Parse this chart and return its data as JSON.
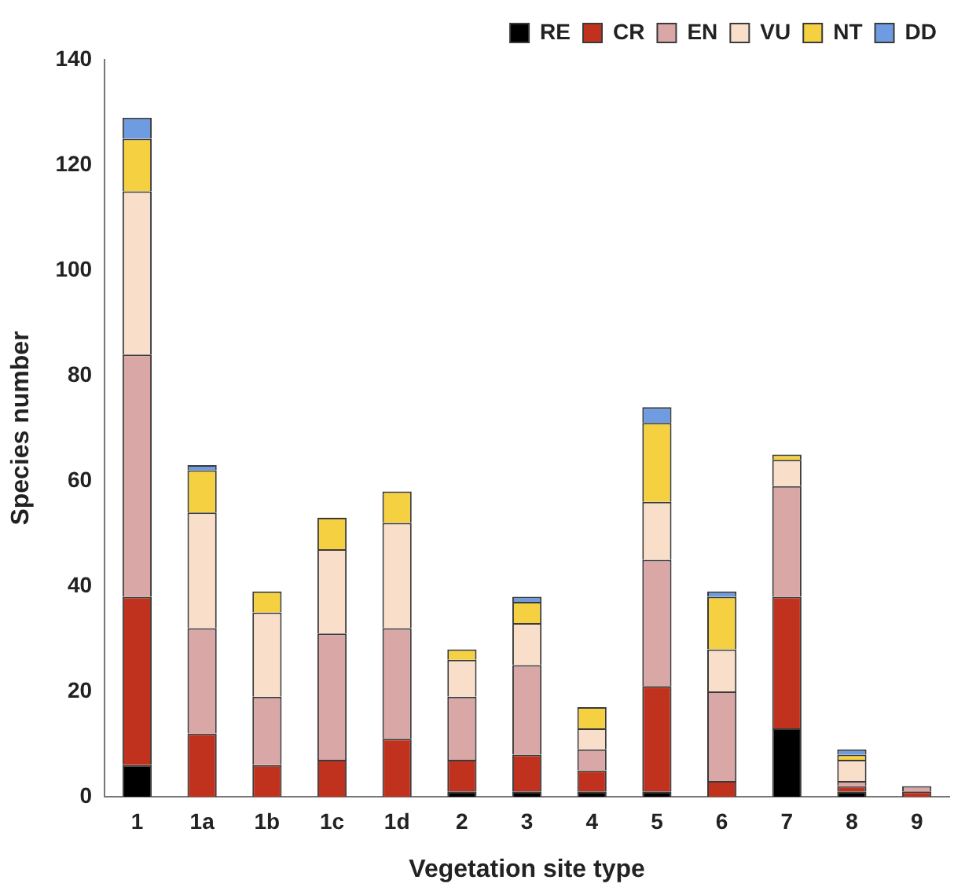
{
  "chart_data": {
    "type": "bar",
    "stacked": true,
    "xlabel": "Vegetation site type",
    "ylabel": "Species number",
    "categories": [
      "1",
      "1a",
      "1b",
      "1c",
      "1d",
      "2",
      "3",
      "4",
      "5",
      "6",
      "7",
      "8",
      "9"
    ],
    "ylim": [
      0,
      140
    ],
    "yticks": [
      0,
      20,
      40,
      60,
      80,
      100,
      120,
      140
    ],
    "grid": false,
    "legend": "top right",
    "series": [
      {
        "name": "RE",
        "color": "#000000",
        "values": [
          6,
          0,
          0,
          0,
          0,
          1,
          1,
          1,
          1,
          0,
          13,
          1,
          0
        ]
      },
      {
        "name": "CR",
        "color": "#c0311e",
        "values": [
          32,
          12,
          6,
          7,
          11,
          6,
          7,
          4,
          20,
          3,
          25,
          1,
          1
        ]
      },
      {
        "name": "EN",
        "color": "#d9a8a6",
        "values": [
          46,
          20,
          13,
          24,
          21,
          12,
          17,
          4,
          24,
          17,
          21,
          1,
          1
        ]
      },
      {
        "name": "VU",
        "color": "#f9dfc9",
        "values": [
          31,
          22,
          16,
          16,
          20,
          7,
          8,
          4,
          11,
          8,
          5,
          4,
          0
        ]
      },
      {
        "name": "NT",
        "color": "#f5d142",
        "values": [
          10,
          8,
          4,
          6,
          6,
          2,
          4,
          4,
          15,
          10,
          1,
          1,
          0
        ]
      },
      {
        "name": "DD",
        "color": "#6f9be0",
        "values": [
          4,
          1,
          0,
          0,
          0,
          0,
          1,
          0,
          3,
          1,
          0,
          1,
          0
        ]
      }
    ]
  }
}
